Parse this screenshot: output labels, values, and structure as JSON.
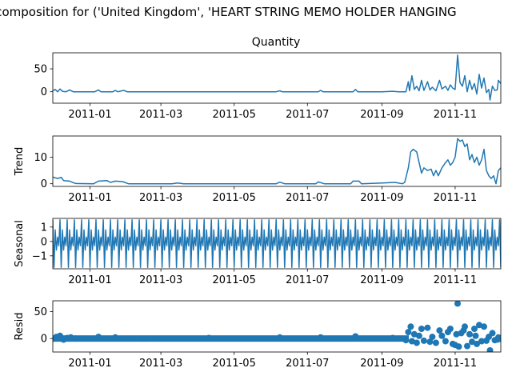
{
  "chart_data": {
    "type": "line",
    "title": "ecomposition for ('United Kingdom', 'HEART STRING MEMO HOLDER HANGING",
    "subtitle": "Quantity",
    "x_tick_labels": [
      "2011-01",
      "2011-03",
      "2011-05",
      "2011-07",
      "2011-09",
      "2011-11"
    ],
    "x_tick_dates": [
      "2011-01-01",
      "2011-03-01",
      "2011-05-01",
      "2011-07-01",
      "2011-09-01",
      "2011-11-01"
    ],
    "xlim": [
      "2010-12-01",
      "2011-12-09"
    ],
    "color": "#1f77b4",
    "panels": [
      {
        "name": "observed",
        "ylabel": "",
        "style": "line",
        "ylim": [
          -25,
          85
        ],
        "yticks": [
          0,
          50
        ],
        "series": [
          {
            "x": "2010-12-01",
            "y": 2
          },
          {
            "x": "2010-12-03",
            "y": 5
          },
          {
            "x": "2010-12-05",
            "y": 0
          },
          {
            "x": "2010-12-07",
            "y": 6
          },
          {
            "x": "2010-12-09",
            "y": 1
          },
          {
            "x": "2010-12-12",
            "y": 0
          },
          {
            "x": "2010-12-15",
            "y": 4
          },
          {
            "x": "2010-12-18",
            "y": 0
          },
          {
            "x": "2010-12-25",
            "y": 0
          },
          {
            "x": "2011-01-05",
            "y": 0
          },
          {
            "x": "2011-01-08",
            "y": 4
          },
          {
            "x": "2011-01-10",
            "y": 0
          },
          {
            "x": "2011-01-20",
            "y": 0
          },
          {
            "x": "2011-01-22",
            "y": 3
          },
          {
            "x": "2011-01-24",
            "y": 0
          },
          {
            "x": "2011-01-29",
            "y": 3
          },
          {
            "x": "2011-02-01",
            "y": 0
          },
          {
            "x": "2011-03-01",
            "y": 0
          },
          {
            "x": "2011-04-01",
            "y": 0
          },
          {
            "x": "2011-05-01",
            "y": 0
          },
          {
            "x": "2011-06-05",
            "y": 0
          },
          {
            "x": "2011-06-08",
            "y": 2
          },
          {
            "x": "2011-06-10",
            "y": 0
          },
          {
            "x": "2011-07-01",
            "y": 0
          },
          {
            "x": "2011-07-10",
            "y": 0
          },
          {
            "x": "2011-07-12",
            "y": 3
          },
          {
            "x": "2011-07-14",
            "y": 0
          },
          {
            "x": "2011-08-08",
            "y": 0
          },
          {
            "x": "2011-08-10",
            "y": 5
          },
          {
            "x": "2011-08-12",
            "y": 0
          },
          {
            "x": "2011-09-01",
            "y": 0
          },
          {
            "x": "2011-09-10",
            "y": 1
          },
          {
            "x": "2011-09-15",
            "y": 0
          },
          {
            "x": "2011-09-21",
            "y": 0
          },
          {
            "x": "2011-09-23",
            "y": 22
          },
          {
            "x": "2011-09-24",
            "y": 2
          },
          {
            "x": "2011-09-26",
            "y": 35
          },
          {
            "x": "2011-09-28",
            "y": 5
          },
          {
            "x": "2011-09-30",
            "y": 12
          },
          {
            "x": "2011-10-02",
            "y": 2
          },
          {
            "x": "2011-10-04",
            "y": 25
          },
          {
            "x": "2011-10-06",
            "y": 3
          },
          {
            "x": "2011-10-09",
            "y": 22
          },
          {
            "x": "2011-10-11",
            "y": 4
          },
          {
            "x": "2011-10-13",
            "y": 10
          },
          {
            "x": "2011-10-16",
            "y": 2
          },
          {
            "x": "2011-10-19",
            "y": 25
          },
          {
            "x": "2011-10-21",
            "y": 6
          },
          {
            "x": "2011-10-24",
            "y": 12
          },
          {
            "x": "2011-10-26",
            "y": 3
          },
          {
            "x": "2011-10-28",
            "y": 15
          },
          {
            "x": "2011-10-30",
            "y": 8
          },
          {
            "x": "2011-11-01",
            "y": 5
          },
          {
            "x": "2011-11-03",
            "y": 80
          },
          {
            "x": "2011-11-05",
            "y": 20
          },
          {
            "x": "2011-11-07",
            "y": 12
          },
          {
            "x": "2011-11-09",
            "y": 35
          },
          {
            "x": "2011-11-11",
            "y": 0
          },
          {
            "x": "2011-11-13",
            "y": 25
          },
          {
            "x": "2011-11-15",
            "y": 5
          },
          {
            "x": "2011-11-17",
            "y": 18
          },
          {
            "x": "2011-11-19",
            "y": -5
          },
          {
            "x": "2011-11-21",
            "y": 38
          },
          {
            "x": "2011-11-23",
            "y": 8
          },
          {
            "x": "2011-11-25",
            "y": 30
          },
          {
            "x": "2011-11-27",
            "y": -2
          },
          {
            "x": "2011-11-29",
            "y": 5
          },
          {
            "x": "2011-11-30",
            "y": -18
          },
          {
            "x": "2011-12-02",
            "y": 12
          },
          {
            "x": "2011-12-04",
            "y": 3
          },
          {
            "x": "2011-12-06",
            "y": 4
          },
          {
            "x": "2011-12-07",
            "y": 25
          },
          {
            "x": "2011-12-09",
            "y": 18
          }
        ]
      },
      {
        "name": "trend",
        "ylabel": "Trend",
        "style": "line",
        "ylim": [
          -1,
          18
        ],
        "yticks": [
          0,
          10
        ],
        "series": [
          {
            "x": "2010-12-01",
            "y": 2.5
          },
          {
            "x": "2010-12-05",
            "y": 2
          },
          {
            "x": "2010-12-08",
            "y": 2.4
          },
          {
            "x": "2010-12-10",
            "y": 1.2
          },
          {
            "x": "2010-12-15",
            "y": 1
          },
          {
            "x": "2010-12-20",
            "y": 0.1
          },
          {
            "x": "2011-01-04",
            "y": 0
          },
          {
            "x": "2011-01-08",
            "y": 1
          },
          {
            "x": "2011-01-15",
            "y": 1.2
          },
          {
            "x": "2011-01-18",
            "y": 0.5
          },
          {
            "x": "2011-01-22",
            "y": 1
          },
          {
            "x": "2011-01-28",
            "y": 0.8
          },
          {
            "x": "2011-02-02",
            "y": 0
          },
          {
            "x": "2011-03-10",
            "y": 0
          },
          {
            "x": "2011-03-15",
            "y": 0.3
          },
          {
            "x": "2011-03-20",
            "y": 0
          },
          {
            "x": "2011-05-01",
            "y": 0
          },
          {
            "x": "2011-06-05",
            "y": 0
          },
          {
            "x": "2011-06-08",
            "y": 0.6
          },
          {
            "x": "2011-06-12",
            "y": 0
          },
          {
            "x": "2011-07-08",
            "y": 0
          },
          {
            "x": "2011-07-10",
            "y": 0.7
          },
          {
            "x": "2011-07-15",
            "y": 0
          },
          {
            "x": "2011-08-06",
            "y": 0
          },
          {
            "x": "2011-08-08",
            "y": 1
          },
          {
            "x": "2011-08-13",
            "y": 1
          },
          {
            "x": "2011-08-15",
            "y": 0
          },
          {
            "x": "2011-09-01",
            "y": 0.3
          },
          {
            "x": "2011-09-12",
            "y": 0.5
          },
          {
            "x": "2011-09-18",
            "y": 0
          },
          {
            "x": "2011-09-20",
            "y": 0.5
          },
          {
            "x": "2011-09-23",
            "y": 6
          },
          {
            "x": "2011-09-25",
            "y": 12
          },
          {
            "x": "2011-09-27",
            "y": 13
          },
          {
            "x": "2011-09-30",
            "y": 12
          },
          {
            "x": "2011-10-02",
            "y": 8
          },
          {
            "x": "2011-10-04",
            "y": 4
          },
          {
            "x": "2011-10-06",
            "y": 6
          },
          {
            "x": "2011-10-09",
            "y": 5
          },
          {
            "x": "2011-10-12",
            "y": 5.5
          },
          {
            "x": "2011-10-14",
            "y": 3
          },
          {
            "x": "2011-10-16",
            "y": 5
          },
          {
            "x": "2011-10-18",
            "y": 3
          },
          {
            "x": "2011-10-21",
            "y": 6
          },
          {
            "x": "2011-10-24",
            "y": 8
          },
          {
            "x": "2011-10-26",
            "y": 9
          },
          {
            "x": "2011-10-28",
            "y": 7
          },
          {
            "x": "2011-10-30",
            "y": 8
          },
          {
            "x": "2011-11-01",
            "y": 10
          },
          {
            "x": "2011-11-03",
            "y": 17
          },
          {
            "x": "2011-11-05",
            "y": 16
          },
          {
            "x": "2011-11-07",
            "y": 16.5
          },
          {
            "x": "2011-11-09",
            "y": 14
          },
          {
            "x": "2011-11-11",
            "y": 15
          },
          {
            "x": "2011-11-13",
            "y": 9
          },
          {
            "x": "2011-11-15",
            "y": 11
          },
          {
            "x": "2011-11-17",
            "y": 8
          },
          {
            "x": "2011-11-19",
            "y": 10
          },
          {
            "x": "2011-11-21",
            "y": 7
          },
          {
            "x": "2011-11-23",
            "y": 9
          },
          {
            "x": "2011-11-25",
            "y": 13
          },
          {
            "x": "2011-11-27",
            "y": 5
          },
          {
            "x": "2011-11-29",
            "y": 3
          },
          {
            "x": "2011-12-01",
            "y": 2
          },
          {
            "x": "2011-12-03",
            "y": 3
          },
          {
            "x": "2011-12-05",
            "y": 0
          },
          {
            "x": "2011-12-07",
            "y": 5
          },
          {
            "x": "2011-12-09",
            "y": 6
          }
        ]
      },
      {
        "name": "seasonal",
        "ylabel": "Seasonal",
        "style": "seasonal",
        "ylim": [
          -1.9,
          1.6
        ],
        "yticks": [
          -1,
          0,
          1
        ],
        "period_days": 6,
        "pattern": [
          1.5,
          -1.8,
          0.8,
          -0.6,
          0.3,
          -0.3
        ]
      },
      {
        "name": "resid",
        "ylabel": "Resid",
        "style": "scatter",
        "ylim": [
          -25,
          70
        ],
        "yticks": [
          0,
          50
        ],
        "baseline_points": [
          {
            "x": "2010-12-01",
            "y": 0
          },
          {
            "x": "2010-12-04",
            "y": 3
          },
          {
            "x": "2010-12-07",
            "y": 5
          },
          {
            "x": "2010-12-10",
            "y": -2
          },
          {
            "x": "2010-12-13",
            "y": 1
          },
          {
            "x": "2010-12-16",
            "y": 2
          },
          {
            "x": "2010-12-20",
            "y": 0
          },
          {
            "x": "2011-01-08",
            "y": 3
          },
          {
            "x": "2011-01-22",
            "y": 2
          },
          {
            "x": "2011-02-15",
            "y": 0
          },
          {
            "x": "2011-04-10",
            "y": 1
          },
          {
            "x": "2011-06-08",
            "y": 2
          },
          {
            "x": "2011-07-12",
            "y": 2
          },
          {
            "x": "2011-08-10",
            "y": 4
          },
          {
            "x": "2011-09-10",
            "y": 1
          }
        ],
        "series": [
          {
            "x": "2011-09-21",
            "y": -3
          },
          {
            "x": "2011-09-23",
            "y": 12
          },
          {
            "x": "2011-09-25",
            "y": 22
          },
          {
            "x": "2011-09-26",
            "y": -5
          },
          {
            "x": "2011-09-28",
            "y": 8
          },
          {
            "x": "2011-09-30",
            "y": -8
          },
          {
            "x": "2011-10-02",
            "y": 5
          },
          {
            "x": "2011-10-04",
            "y": 18
          },
          {
            "x": "2011-10-06",
            "y": -4
          },
          {
            "x": "2011-10-09",
            "y": 20
          },
          {
            "x": "2011-10-11",
            "y": -6
          },
          {
            "x": "2011-10-13",
            "y": 3
          },
          {
            "x": "2011-10-16",
            "y": -8
          },
          {
            "x": "2011-10-19",
            "y": 15
          },
          {
            "x": "2011-10-21",
            "y": 5
          },
          {
            "x": "2011-10-24",
            "y": -5
          },
          {
            "x": "2011-10-26",
            "y": 12
          },
          {
            "x": "2011-10-28",
            "y": 18
          },
          {
            "x": "2011-10-30",
            "y": -10
          },
          {
            "x": "2011-11-01",
            "y": -12
          },
          {
            "x": "2011-11-02",
            "y": 8
          },
          {
            "x": "2011-11-03",
            "y": 65
          },
          {
            "x": "2011-11-04",
            "y": -15
          },
          {
            "x": "2011-11-06",
            "y": 10
          },
          {
            "x": "2011-11-08",
            "y": 15
          },
          {
            "x": "2011-11-09",
            "y": 22
          },
          {
            "x": "2011-11-11",
            "y": -14
          },
          {
            "x": "2011-11-13",
            "y": 8
          },
          {
            "x": "2011-11-15",
            "y": -6
          },
          {
            "x": "2011-11-17",
            "y": 18
          },
          {
            "x": "2011-11-18",
            "y": 5
          },
          {
            "x": "2011-11-19",
            "y": -10
          },
          {
            "x": "2011-11-21",
            "y": 25
          },
          {
            "x": "2011-11-23",
            "y": -5
          },
          {
            "x": "2011-11-25",
            "y": 22
          },
          {
            "x": "2011-11-27",
            "y": -4
          },
          {
            "x": "2011-11-29",
            "y": 3
          },
          {
            "x": "2011-11-30",
            "y": -22
          },
          {
            "x": "2011-12-02",
            "y": 10
          },
          {
            "x": "2011-12-04",
            "y": -3
          },
          {
            "x": "2011-12-06",
            "y": -2
          },
          {
            "x": "2011-12-07",
            "y": 2
          },
          {
            "x": "2011-12-09",
            "y": -1
          }
        ]
      }
    ]
  }
}
